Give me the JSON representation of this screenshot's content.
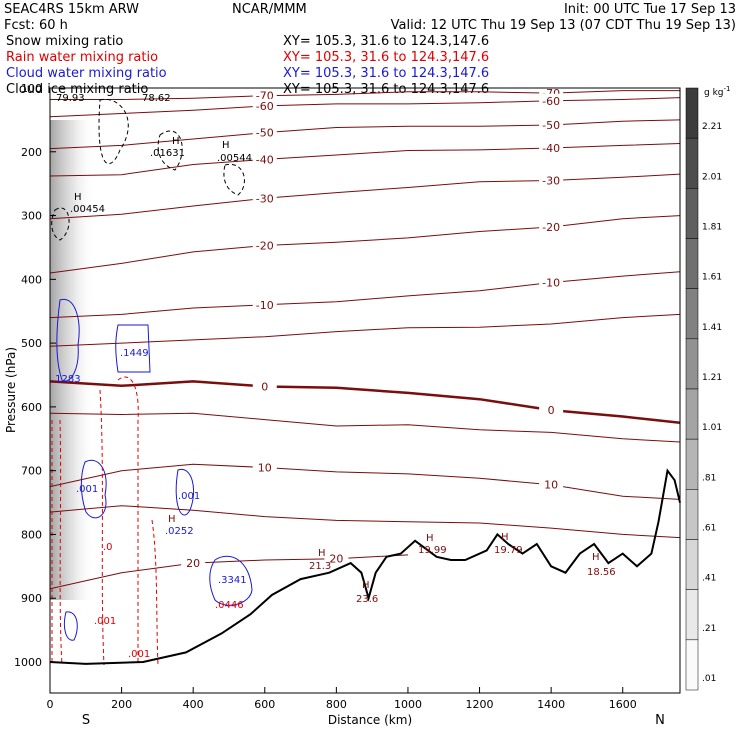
{
  "header": {
    "left": [
      "SEAC4RS 15km ARW",
      "Fcst:    60 h"
    ],
    "center": "NCAR/MMM",
    "right": "Init: 00 UTC Tue 17 Sep 13",
    "valid": "Valid: 12 UTC Thu 19 Sep 13 (07 CDT Thu 19 Sep 13)"
  },
  "fields": [
    {
      "label": "Snow mixing ratio",
      "xy": "XY= 105.3, 31.6 to 124.3,147.6",
      "color": "#000000"
    },
    {
      "label": "Rain water mixing ratio",
      "xy": "XY= 105.3, 31.6 to 124.3,147.6",
      "color": "#e00000"
    },
    {
      "label": "Cloud water mixing ratio",
      "xy": "XY= 105.3, 31.6 to 124.3,147.6",
      "color": "#1a1ad0"
    },
    {
      "label": "Cloud ice mixing ratio",
      "xy": "XY= 105.3, 31.6 to 124.3,147.6",
      "color": "#000000"
    }
  ],
  "colorbar": {
    "unit": "g kg",
    "unit_exp": "-1",
    "labels": [
      "2.21",
      "2.01",
      "1.81",
      "1.61",
      "1.41",
      "1.21",
      "1.01",
      ".81",
      ".61",
      ".41",
      ".21",
      ".01"
    ]
  },
  "colors": {
    "temperature": "#7a0d0d",
    "freezing": "#7a0d0d",
    "terrain": "#000000",
    "rain": "#e00000",
    "cloud_water": "#1a1ad0"
  },
  "chart_data": {
    "type": "cross-section",
    "xlabel": "Distance (km)",
    "ylabel": "Pressure (hPa)",
    "x_ticks": [
      "0",
      "200",
      "400",
      "600",
      "800",
      "1000",
      "1200",
      "1400",
      "1600"
    ],
    "y_ticks": [
      "100",
      "200",
      "300",
      "400",
      "500",
      "600",
      "700",
      "800",
      "900",
      "1000"
    ],
    "xlim": [
      0,
      1760
    ],
    "ylim": [
      100,
      1040
    ],
    "y_direction": "down",
    "end_labels": {
      "left": "S",
      "right": "N"
    },
    "terrain": {
      "x": [
        0,
        100,
        260,
        380,
        480,
        560,
        620,
        700,
        780,
        840,
        870,
        890,
        910,
        940,
        980,
        1020,
        1080,
        1120,
        1160,
        1220,
        1250,
        1280,
        1320,
        1360,
        1400,
        1440,
        1480,
        1520,
        1560,
        1600,
        1640,
        1680,
        1700,
        1725,
        1745,
        1760
      ],
      "value": [
        1000,
        1003,
        1000,
        985,
        955,
        925,
        895,
        870,
        860,
        845,
        860,
        900,
        860,
        835,
        830,
        810,
        835,
        840,
        840,
        825,
        800,
        815,
        830,
        815,
        850,
        860,
        830,
        815,
        845,
        830,
        850,
        830,
        780,
        700,
        715,
        750
      ]
    },
    "isotherms": [
      {
        "label": "-70",
        "x": [
          0,
          200,
          400,
          600,
          800,
          1000,
          1200,
          1400,
          1600,
          1760
        ],
        "p": [
          118,
          118,
          116,
          112,
          110,
          106,
          106,
          108,
          104,
          104
        ]
      },
      {
        "label": "-60",
        "x": [
          0,
          200,
          400,
          600,
          800,
          1000,
          1200,
          1400,
          1600,
          1760
        ],
        "p": [
          145,
          140,
          135,
          128,
          125,
          125,
          123,
          120,
          118,
          115
        ]
      },
      {
        "label": "-50",
        "x": [
          0,
          200,
          400,
          600,
          800,
          1000,
          1200,
          1400,
          1600,
          1760
        ],
        "p": [
          195,
          190,
          180,
          170,
          162,
          160,
          160,
          158,
          152,
          150
        ]
      },
      {
        "label": "-40",
        "x": [
          0,
          200,
          400,
          600,
          800,
          1000,
          1200,
          1400,
          1600,
          1760
        ],
        "p": [
          238,
          236,
          220,
          212,
          205,
          198,
          197,
          194,
          190,
          187
        ]
      },
      {
        "label": "-30",
        "x": [
          0,
          200,
          400,
          600,
          800,
          1000,
          1200,
          1400,
          1600,
          1760
        ],
        "p": [
          305,
          298,
          285,
          273,
          264,
          256,
          247,
          245,
          240,
          235
        ]
      },
      {
        "label": "-20",
        "x": [
          0,
          200,
          400,
          600,
          800,
          1000,
          1200,
          1400,
          1600,
          1760
        ],
        "p": [
          390,
          375,
          357,
          347,
          342,
          335,
          325,
          318,
          305,
          300
        ]
      },
      {
        "label": "-10",
        "x": [
          0,
          200,
          400,
          600,
          800,
          1000,
          1200,
          1400,
          1600,
          1760
        ],
        "p": [
          460,
          455,
          445,
          440,
          435,
          426,
          418,
          405,
          395,
          388
        ]
      },
      {
        "label": "",
        "x": [
          0,
          200,
          400,
          600,
          800,
          1000,
          1200,
          1400,
          1600,
          1760
        ],
        "p": [
          505,
          500,
          495,
          490,
          482,
          476,
          475,
          470,
          460,
          455
        ]
      },
      {
        "label": "0",
        "x": [
          0,
          200,
          400,
          600,
          800,
          1000,
          1200,
          1400,
          1600,
          1760
        ],
        "p": [
          560,
          567,
          560,
          568,
          570,
          578,
          588,
          605,
          615,
          625
        ]
      },
      {
        "label": "",
        "x": [
          0,
          200,
          400,
          600,
          800,
          1000,
          1200,
          1400,
          1600,
          1760
        ],
        "p": [
          610,
          612,
          610,
          620,
          630,
          628,
          636,
          640,
          650,
          655
        ]
      },
      {
        "label": "10",
        "x": [
          0,
          200,
          400,
          600,
          800,
          1000,
          1200,
          1400,
          1600,
          1760
        ],
        "p": [
          725,
          700,
          690,
          695,
          702,
          705,
          712,
          722,
          740,
          745
        ]
      },
      {
        "label": "",
        "x": [
          0,
          200,
          400,
          600,
          800,
          1000,
          1200,
          1400,
          1600,
          1760
        ],
        "p": [
          765,
          755,
          762,
          772,
          778,
          780,
          782,
          790,
          800,
          805
        ]
      },
      {
        "label": "20",
        "x": [
          0,
          200,
          400,
          600,
          800,
          1000
        ],
        "p": [
          885,
          860,
          845,
          840,
          838,
          832
        ]
      }
    ],
    "hydrometeor_labels": [
      {
        "text": "79.93",
        "color": "black"
      },
      {
        "text": "78.62",
        "color": "black"
      },
      {
        "text": ".01631",
        "color": "black"
      },
      {
        "text": ".00544",
        "color": "black"
      },
      {
        "text": ".00454",
        "color": "black"
      },
      {
        "text": ".1449",
        "color": "blue"
      },
      {
        "text": ".1283",
        "color": "blue"
      },
      {
        "text": ".001",
        "color": "blue"
      },
      {
        "text": ".001",
        "color": "blue"
      },
      {
        "text": ".0252",
        "color": "blue"
      },
      {
        "text": ".0",
        "color": "red"
      },
      {
        "text": ".001",
        "color": "red"
      },
      {
        "text": ".001",
        "color": "red"
      },
      {
        "text": ".3341",
        "color": "blue"
      },
      {
        "text": ".0446",
        "color": "red"
      },
      {
        "text": "21.3",
        "color": "temp"
      },
      {
        "text": "23.6",
        "color": "temp"
      },
      {
        "text": "19.99",
        "color": "temp"
      },
      {
        "text": "19.79",
        "color": "temp"
      },
      {
        "text": "18.56",
        "color": "temp"
      }
    ]
  }
}
